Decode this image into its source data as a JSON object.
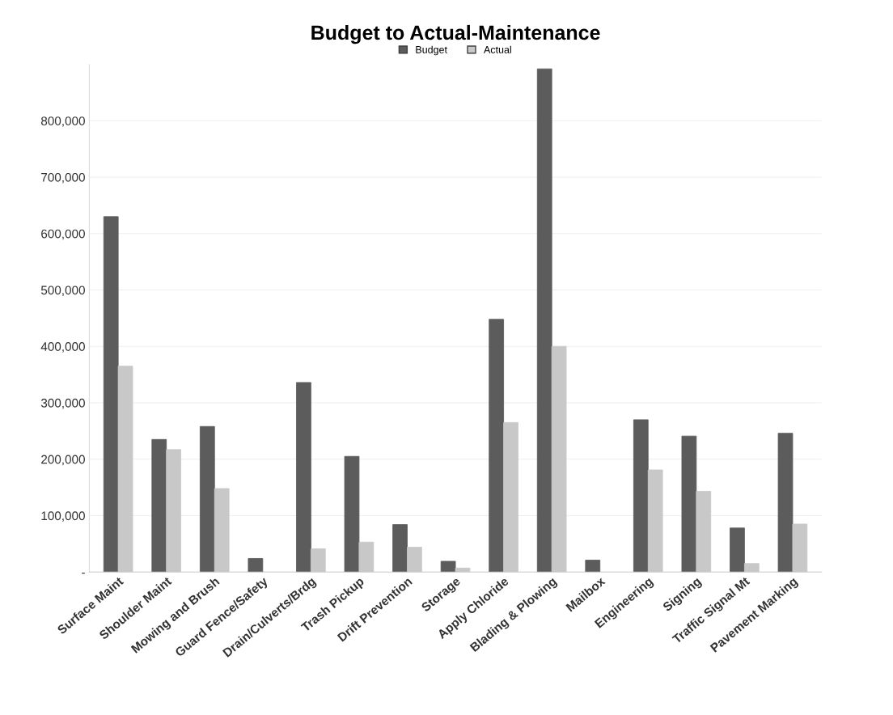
{
  "chart_data": {
    "type": "bar",
    "title": "Budget to Actual-Maintenance",
    "categories": [
      "Surface Maint",
      "Shoulder Maint",
      "Mowing and Brush",
      "Guard Fence/Safety",
      "Drain/Culverts/Brdg",
      "Trash Pickup",
      "Drift Prevention",
      "Storage",
      "Apply Chloride",
      "Blading & Plowing",
      "Mailbox",
      "Engineering",
      "Signing",
      "Traffic Signal Mt",
      "Pavement Marking"
    ],
    "series": [
      {
        "name": "Budget",
        "color": "#5c5c5c",
        "values": [
          630000,
          235000,
          258000,
          24000,
          336000,
          205000,
          84000,
          19000,
          448000,
          892000,
          21000,
          270000,
          241000,
          78000,
          246000
        ]
      },
      {
        "name": "Actual",
        "color": "#c8c8c8",
        "values": [
          365000,
          217000,
          148000,
          null,
          41000,
          53000,
          44000,
          7000,
          265000,
          400000,
          null,
          181000,
          143000,
          15000,
          85000
        ]
      }
    ],
    "ylim": [
      0,
      900000
    ],
    "yticks": [
      {
        "value": 0,
        "label": "-"
      },
      {
        "value": 100000,
        "label": "100,000"
      },
      {
        "value": 200000,
        "label": "200,000"
      },
      {
        "value": 300000,
        "label": "300,000"
      },
      {
        "value": 400000,
        "label": "400,000"
      },
      {
        "value": 500000,
        "label": "500,000"
      },
      {
        "value": 600000,
        "label": "600,000"
      },
      {
        "value": 700000,
        "label": "700,000"
      },
      {
        "value": 800000,
        "label": "800,000"
      }
    ],
    "grid": "y",
    "legend": "top"
  }
}
